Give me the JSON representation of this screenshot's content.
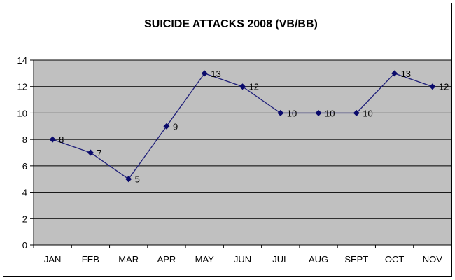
{
  "chart_data": {
    "type": "line",
    "title": "SUICIDE ATTACKS 2008 (VB/BB)",
    "xlabel": "",
    "ylabel": "",
    "categories": [
      "JAN",
      "FEB",
      "MAR",
      "APR",
      "MAY",
      "JUN",
      "JUL",
      "AUG",
      "SEPT",
      "OCT",
      "NOV"
    ],
    "values": [
      8,
      7,
      5,
      9,
      13,
      12,
      10,
      10,
      10,
      13,
      12
    ],
    "ylim": [
      0,
      14
    ],
    "yticks": [
      0,
      2,
      4,
      6,
      8,
      10,
      12,
      14
    ],
    "grid": true,
    "legend": "none",
    "colors": {
      "line": "#1f1f7a",
      "marker": "#0a0a6b",
      "plot_background": "#c0c0c0",
      "gridline": "#000000"
    }
  }
}
